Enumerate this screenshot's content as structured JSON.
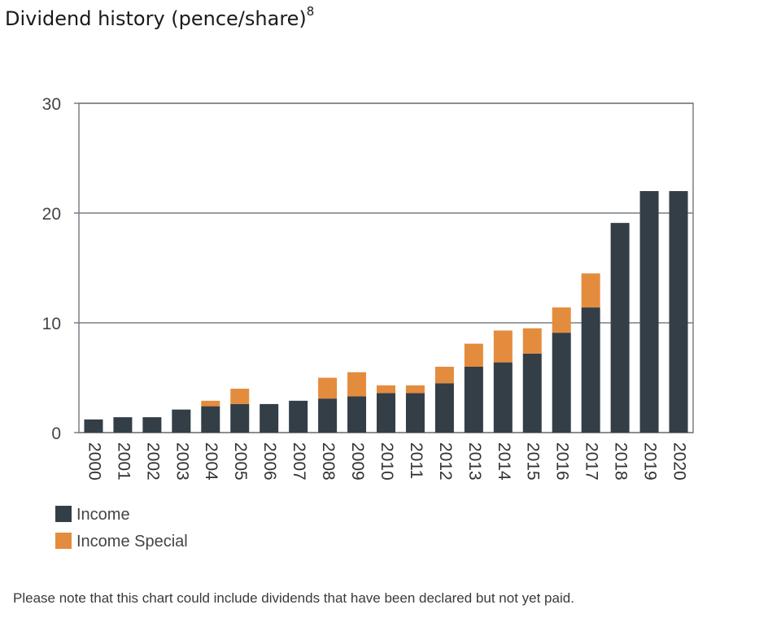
{
  "page": {
    "title": "Dividend history (pence/share)",
    "title_footnote": "8",
    "note": "Please note that this chart could include dividends that have been declared but not yet paid."
  },
  "colors": {
    "income": "#333e46",
    "income_special": "#e48c3e",
    "axis": "#555b60",
    "grid": "#7a7f83"
  },
  "chart_data": {
    "type": "bar",
    "stacked": true,
    "categories": [
      "2000",
      "2001",
      "2002",
      "2003",
      "2004",
      "2005",
      "2006",
      "2007",
      "2008",
      "2009",
      "2010",
      "2011",
      "2012",
      "2013",
      "2014",
      "2015",
      "2016",
      "2017",
      "2018",
      "2019",
      "2020"
    ],
    "series": [
      {
        "name": "Income",
        "values": [
          1.2,
          1.4,
          1.4,
          2.1,
          2.4,
          2.6,
          2.6,
          2.9,
          3.1,
          3.3,
          3.6,
          3.6,
          4.5,
          6.0,
          6.4,
          7.2,
          9.1,
          11.4,
          19.1,
          22.0,
          22.0
        ]
      },
      {
        "name": "Income Special",
        "values": [
          0,
          0,
          0,
          0,
          0.5,
          1.4,
          0,
          0,
          1.9,
          2.2,
          0.7,
          0.7,
          1.5,
          2.1,
          2.9,
          2.3,
          2.3,
          3.1,
          0,
          0,
          0
        ]
      }
    ],
    "yticks": [
      0,
      10,
      20,
      30
    ],
    "ylim": [
      0,
      30
    ],
    "xlabel": "",
    "ylabel": "",
    "grid": true,
    "legend_position": "bottom-left"
  }
}
